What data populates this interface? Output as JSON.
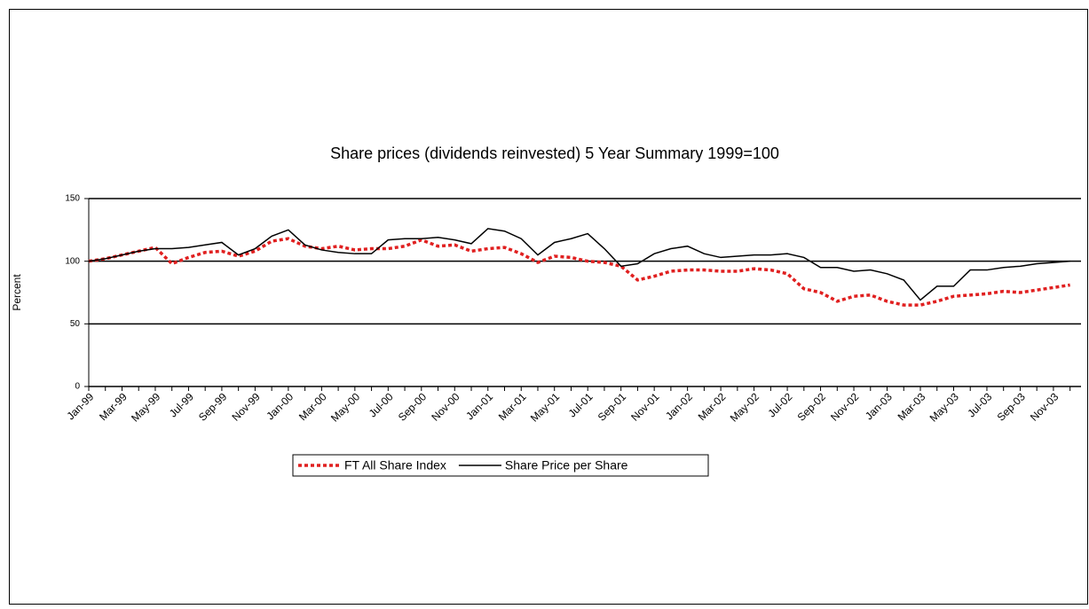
{
  "chart_data": {
    "type": "line",
    "title": "Share prices (dividends reinvested) 5 Year Summary 1999=100",
    "y_label": "Percent",
    "categories": [
      "Jan-99",
      null,
      "Mar-99",
      null,
      "May-99",
      null,
      "Jul-99",
      null,
      "Sep-99",
      null,
      "Nov-99",
      null,
      "Jan-00",
      null,
      "Mar-00",
      null,
      "May-00",
      null,
      "Jul-00",
      null,
      "Sep-00",
      null,
      "Nov-00",
      null,
      "Jan-01",
      null,
      "Mar-01",
      null,
      "May-01",
      null,
      "Jul-01",
      null,
      "Sep-01",
      null,
      "Nov-01",
      null,
      "Jan-02",
      null,
      "Mar-02",
      null,
      "May-02",
      null,
      "Jul-02",
      null,
      "Sep-02",
      null,
      "Nov-02",
      null,
      "Jan-03",
      null,
      "Mar-03",
      null,
      "May-03",
      null,
      "Jul-03",
      null,
      "Sep-03",
      null,
      "Nov-03",
      null
    ],
    "series": [
      {
        "name": "FT All Share Index",
        "color": "#e02020",
        "dashed": true,
        "values": [
          100,
          102,
          105,
          108,
          111,
          98,
          103,
          107,
          108,
          104,
          108,
          116,
          118,
          112,
          110,
          112,
          109,
          110,
          110,
          112,
          117,
          112,
          113,
          108,
          110,
          111,
          106,
          99,
          104,
          103,
          100,
          99,
          96,
          85,
          88,
          92,
          93,
          93,
          92,
          92,
          94,
          93,
          90,
          78,
          75,
          68,
          72,
          73,
          68,
          65,
          65,
          68,
          72,
          73,
          74,
          76,
          75,
          77,
          79,
          81
        ]
      },
      {
        "name": "Share Price per Share",
        "color": "#000000",
        "dashed": false,
        "values": [
          100,
          102,
          105,
          108,
          110,
          110,
          111,
          113,
          115,
          105,
          110,
          120,
          125,
          113,
          109,
          107,
          106,
          106,
          117,
          118,
          118,
          119,
          117,
          114,
          126,
          124,
          118,
          105,
          115,
          118,
          122,
          110,
          96,
          98,
          106,
          110,
          112,
          106,
          103,
          104,
          105,
          105,
          106,
          103,
          95,
          95,
          92,
          93,
          90,
          85,
          69,
          80,
          80,
          93,
          93,
          95,
          96,
          98,
          99,
          100
        ]
      }
    ],
    "ylim": [
      0,
      150
    ],
    "yticks": [
      0,
      50,
      100,
      150
    ],
    "grid": true,
    "legend": "bottom"
  }
}
